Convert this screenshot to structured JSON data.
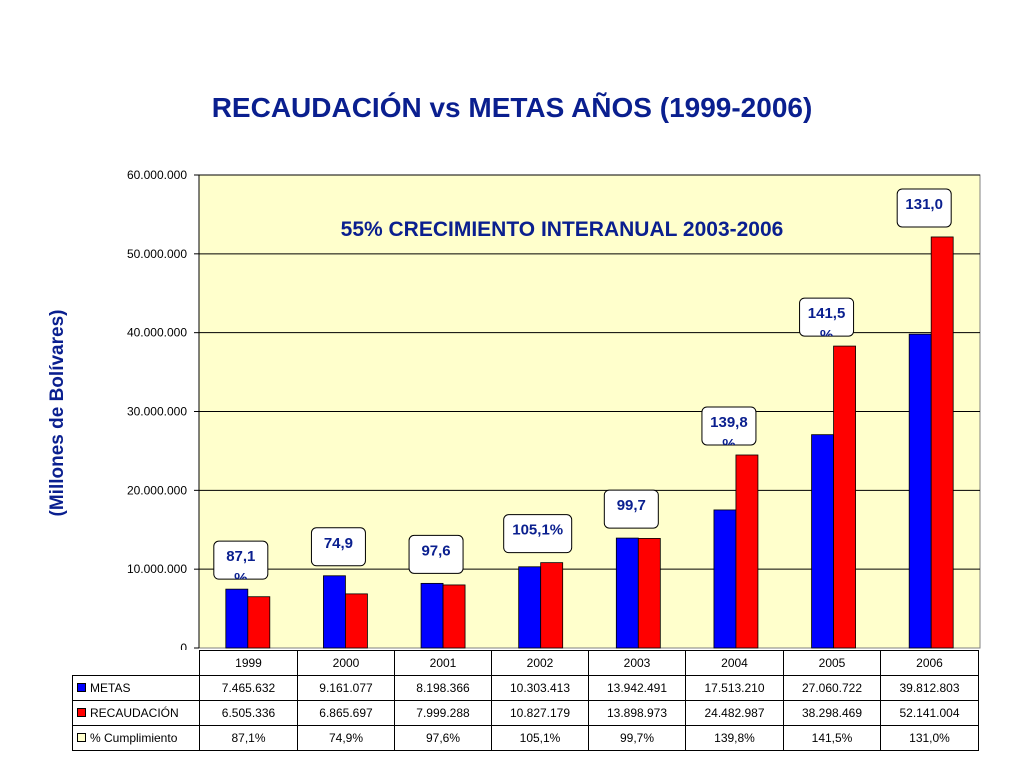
{
  "title": "RECAUDACIÓN vs METAS AÑOS (1999-2006)",
  "chart_data": {
    "type": "bar",
    "title": "RECAUDACIÓN vs METAS AÑOS (1999-2006)",
    "annotation": "55% CRECIMIENTO INTERANUAL 2003-2006",
    "ylabel": "(Millones de Bolívares)",
    "xlabel": "",
    "ylim": [
      0,
      60000000
    ],
    "yticks": [
      0,
      10000000,
      20000000,
      30000000,
      40000000,
      50000000,
      60000000
    ],
    "ytick_labels": [
      "0",
      "10.000.000",
      "20.000.000",
      "30.000.000",
      "40.000.000",
      "50.000.000",
      "60.000.000"
    ],
    "grid": true,
    "plot_background": "#ffffcc",
    "categories": [
      "1999",
      "2000",
      "2001",
      "2002",
      "2003",
      "2004",
      "2005",
      "2006"
    ],
    "series": [
      {
        "name": "METAS",
        "color": "#0000ff",
        "values": [
          7465632,
          9161077,
          8198366,
          10303413,
          13942491,
          17513210,
          27060722,
          39812803
        ],
        "labels": [
          "7.465.632",
          "9.161.077",
          "8.198.366",
          "10.303.413",
          "13.942.491",
          "17.513.210",
          "27.060.722",
          "39.812.803"
        ]
      },
      {
        "name": "RECAUDACIÓN",
        "color": "#ff0000",
        "values": [
          6505336,
          6865697,
          7999288,
          10827179,
          13898973,
          24482987,
          38298469,
          52141004
        ],
        "labels": [
          "6.505.336",
          "6.865.697",
          "7.999.288",
          "10.827.179",
          "13.898.973",
          "24.482.987",
          "38.298.469",
          "52.141.004"
        ]
      },
      {
        "name": "% Cumplimiento",
        "color": "#ffffcc",
        "values": [
          87.1,
          74.9,
          97.6,
          105.1,
          99.7,
          139.8,
          141.5,
          131.0
        ],
        "labels": [
          "87,1%",
          "74,9%",
          "97,6%",
          "105,1%",
          "99,7%",
          "139,8%",
          "141,5%",
          "131,0%"
        ]
      }
    ],
    "callouts": [
      {
        "line1": "87,1",
        "line2": "%"
      },
      {
        "line1": "74,9",
        "line2": ""
      },
      {
        "line1": "97,6",
        "line2": ""
      },
      {
        "line1": "105,1%",
        "line2": ""
      },
      {
        "line1": "99,7",
        "line2": ""
      },
      {
        "line1": "139,8",
        "line2": "%"
      },
      {
        "line1": "141,5",
        "line2": "%"
      },
      {
        "line1": "131,0",
        "line2": ""
      }
    ]
  }
}
